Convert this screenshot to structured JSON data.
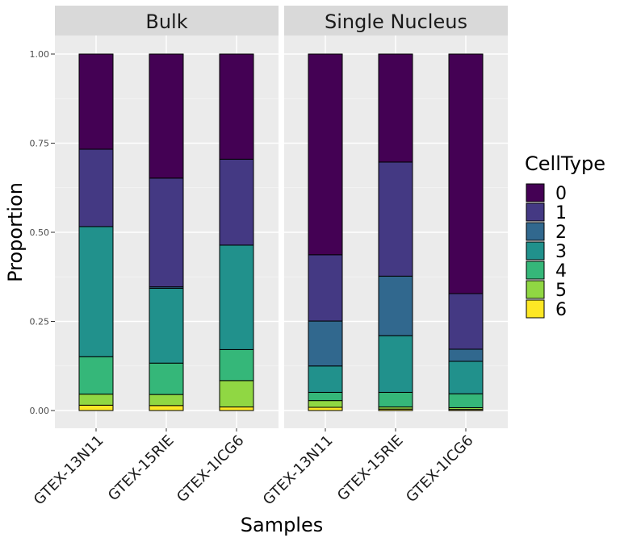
{
  "chart_data": {
    "type": "bar",
    "stacked": true,
    "facets": [
      "Bulk",
      "Single Nucleus"
    ],
    "categories": [
      "GTEX-13N11",
      "GTEX-15RIE",
      "GTEX-1ICG6"
    ],
    "ylabel": "Proportion",
    "xlabel": "Samples",
    "ylim": [
      0,
      1
    ],
    "yticks": [
      "0.00",
      "0.25",
      "0.50",
      "0.75",
      "1.00"
    ],
    "ytick_values": [
      0,
      0.25,
      0.5,
      0.75,
      1.0
    ],
    "legend": {
      "title": "CellType",
      "placement": "right",
      "entries": [
        "0",
        "1",
        "2",
        "3",
        "4",
        "5",
        "6"
      ]
    },
    "colors": [
      "#440154",
      "#443983",
      "#31688e",
      "#21918c",
      "#35b779",
      "#90d743",
      "#fde725"
    ],
    "panels": [
      {
        "facet": "Bulk",
        "series": [
          {
            "name": "0",
            "values": [
              0.267,
              0.348,
              0.295
            ]
          },
          {
            "name": "1",
            "values": [
              0.217,
              0.305,
              0.241
            ]
          },
          {
            "name": "2",
            "values": [
              0.0,
              0.004,
              0.0
            ]
          },
          {
            "name": "3",
            "values": [
              0.365,
              0.21,
              0.293
            ]
          },
          {
            "name": "4",
            "values": [
              0.105,
              0.088,
              0.087
            ]
          },
          {
            "name": "5",
            "values": [
              0.031,
              0.031,
              0.074
            ]
          },
          {
            "name": "6",
            "values": [
              0.015,
              0.014,
              0.01
            ]
          }
        ]
      },
      {
        "facet": "Single Nucleus",
        "series": [
          {
            "name": "0",
            "values": [
              0.563,
              0.303,
              0.672
            ]
          },
          {
            "name": "1",
            "values": [
              0.186,
              0.32,
              0.156
            ]
          },
          {
            "name": "2",
            "values": [
              0.126,
              0.167,
              0.034
            ]
          },
          {
            "name": "3",
            "values": [
              0.074,
              0.159,
              0.091
            ]
          },
          {
            "name": "4",
            "values": [
              0.023,
              0.041,
              0.039
            ]
          },
          {
            "name": "5",
            "values": [
              0.019,
              0.006,
              0.005
            ]
          },
          {
            "name": "6",
            "values": [
              0.009,
              0.004,
              0.003
            ]
          }
        ]
      }
    ]
  }
}
